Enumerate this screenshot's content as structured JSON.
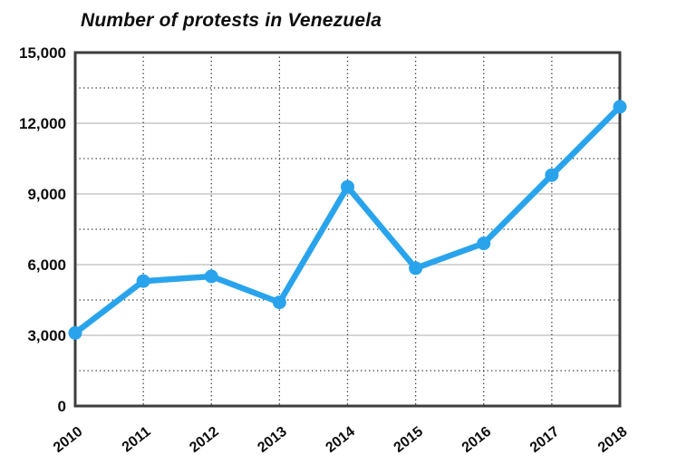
{
  "chart_data": {
    "type": "line",
    "title": "Number of protests in Venezuela",
    "xlabel": "",
    "ylabel": "",
    "categories": [
      "2010",
      "2011",
      "2012",
      "2013",
      "2014",
      "2015",
      "2016",
      "2017",
      "2018"
    ],
    "values": [
      3100,
      5300,
      5500,
      4400,
      9300,
      5850,
      6900,
      9800,
      12700
    ],
    "ylim": [
      0,
      15000
    ],
    "ytick_major_step": 3000,
    "ytick_minor_step": 1500,
    "ytick_labels": [
      "0",
      "3,000",
      "6,000",
      "9,000",
      "12,000",
      "15,000"
    ],
    "grid": {
      "horizontal_major": "solid",
      "horizontal_minor": "dotted",
      "vertical_years": "dotted"
    },
    "legend": null,
    "colors": {
      "line": "#29a4ec",
      "marker": "#29a4ec",
      "axis_frame": "#3d3d3d",
      "grid_major": "#c7c7c7",
      "grid_minor": "#3f3f3f",
      "text": "#0d0d0d",
      "background": "#ffffff"
    }
  }
}
